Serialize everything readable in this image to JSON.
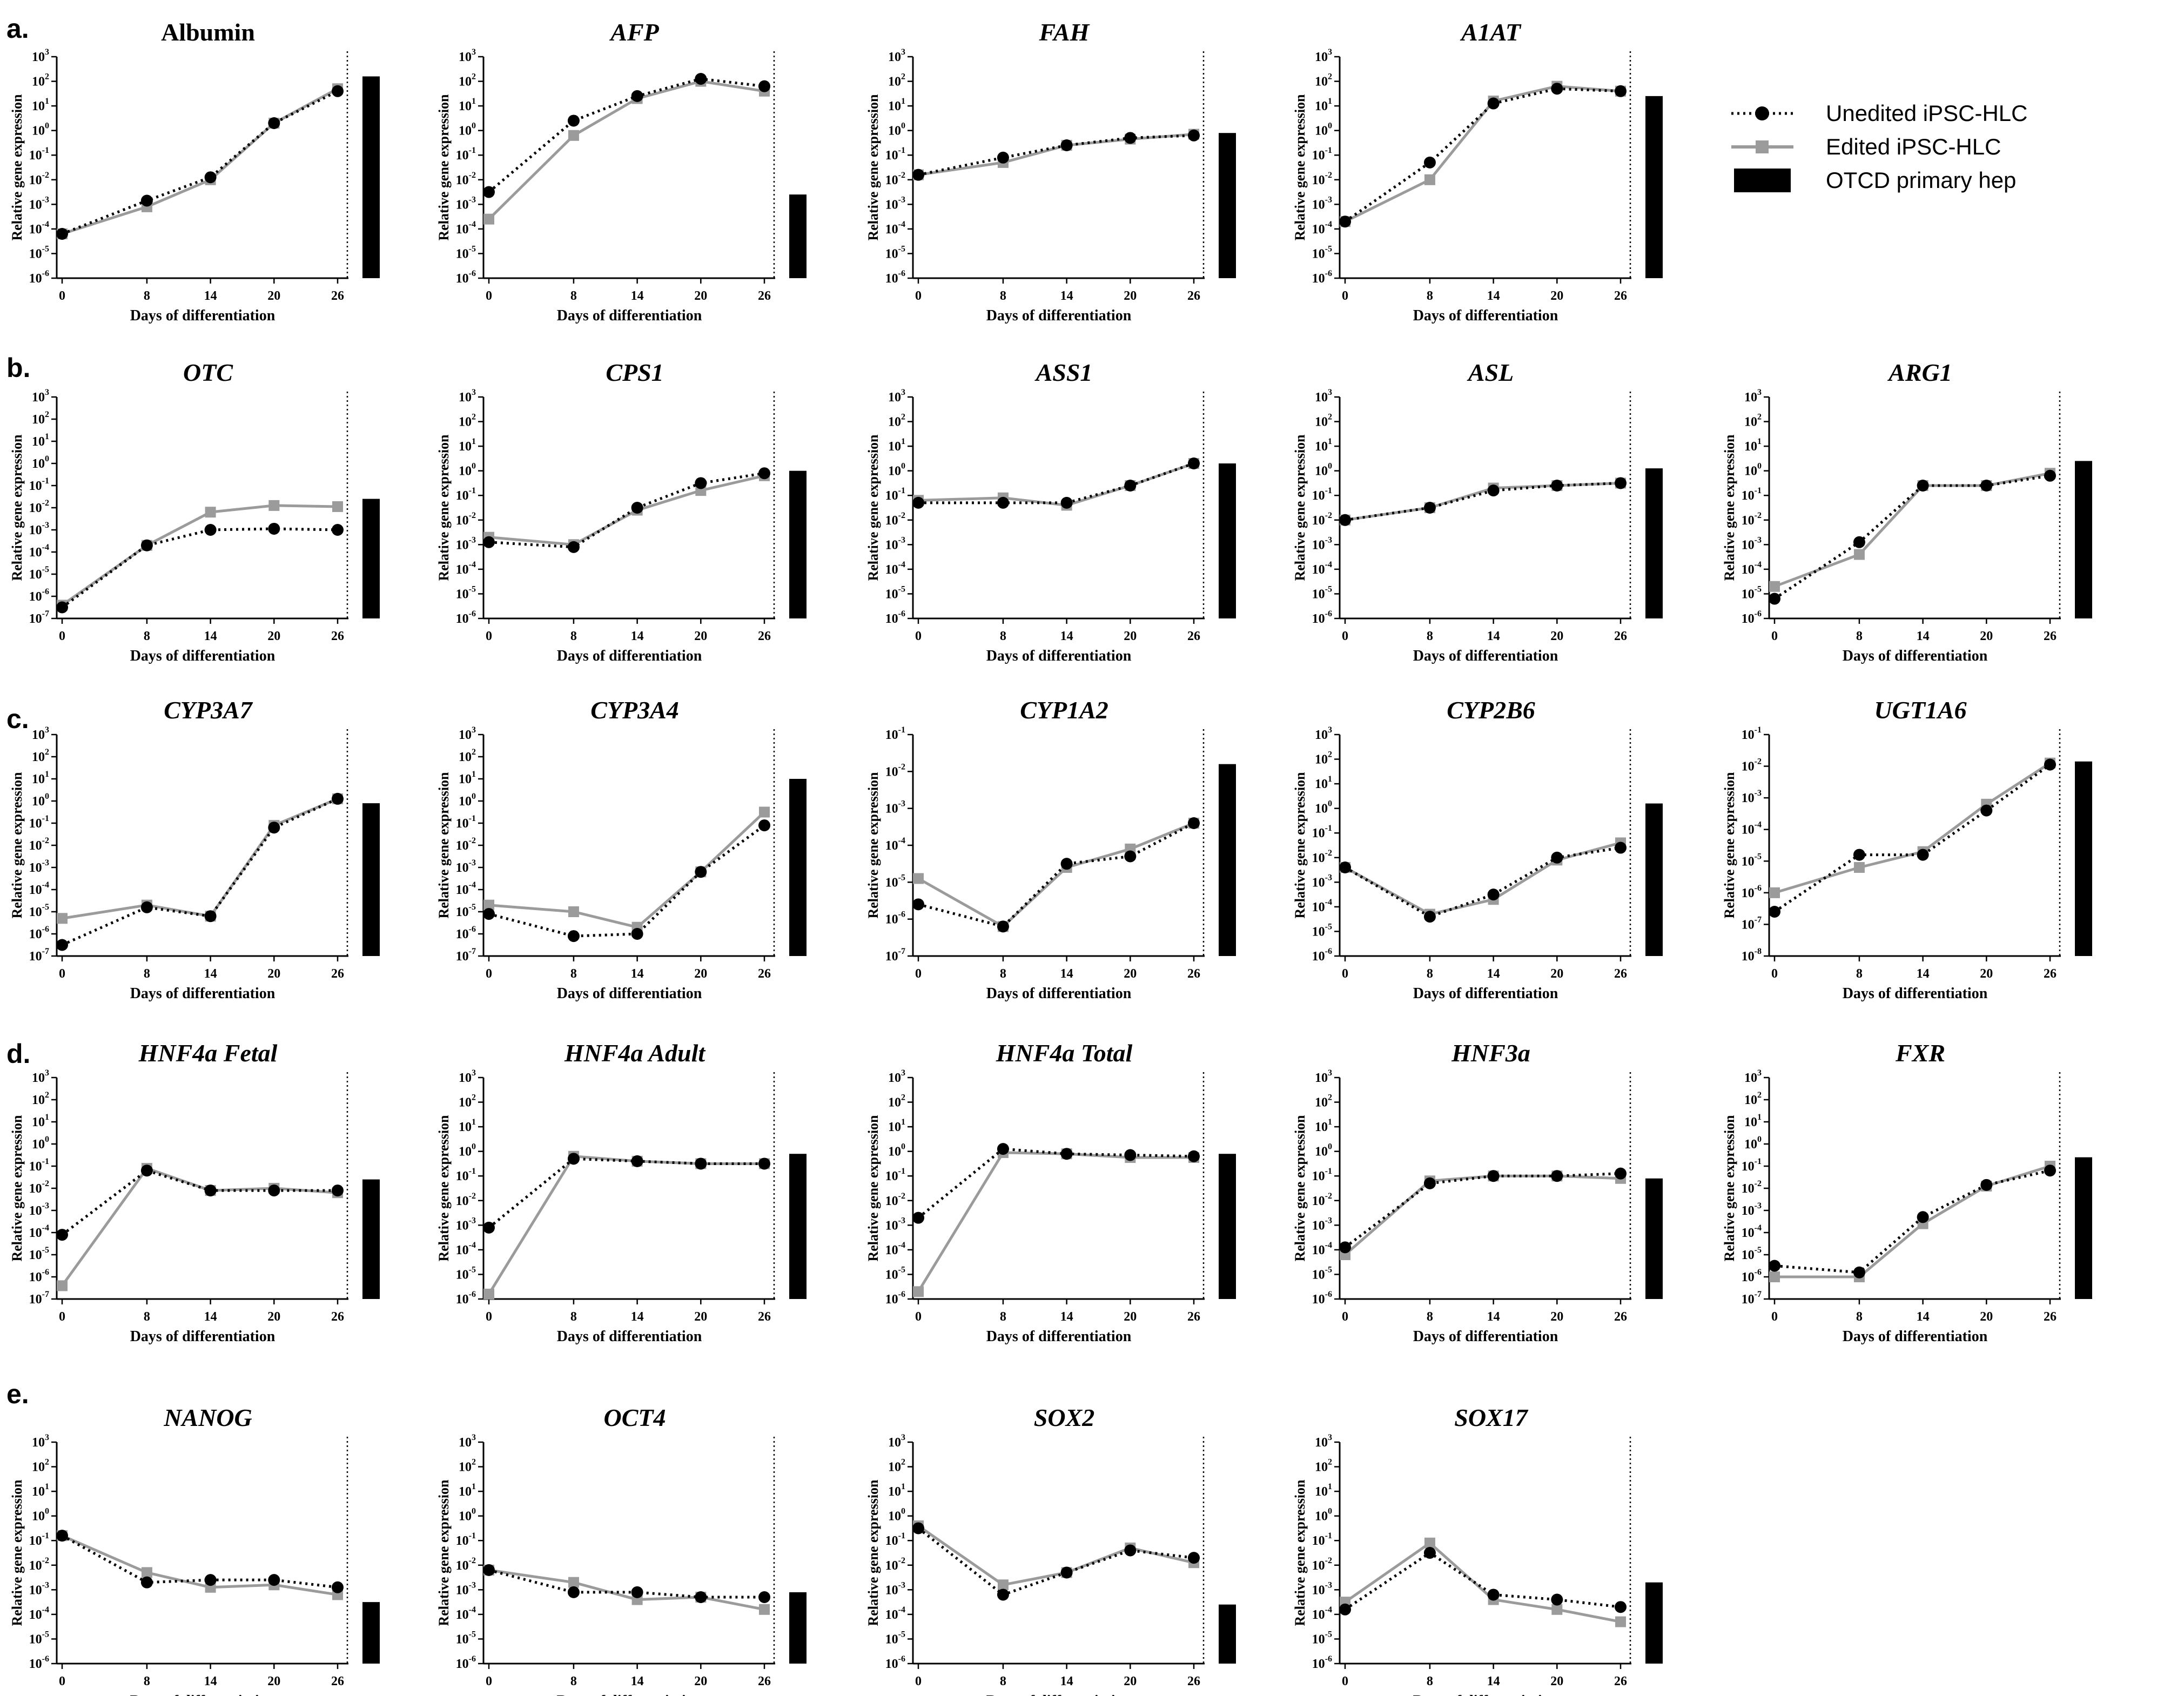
{
  "figure": {
    "xlabel": "Days of differentiation",
    "ylabel": "Relative gene expression",
    "x_ticks": [
      0,
      8,
      14,
      20,
      26
    ],
    "row_labels": [
      "a.",
      "b.",
      "c.",
      "d.",
      "e."
    ]
  },
  "legend": {
    "position": "top-right",
    "entries": [
      {
        "name": "Unedited iPSC-HLC",
        "color": "#000000",
        "style": "dotted-circle"
      },
      {
        "name": "Edited iPSC-HLC",
        "color": "#9b9b9b",
        "style": "solid-square"
      },
      {
        "name": "OTCD primary hep",
        "color": "#000000",
        "style": "bar"
      }
    ]
  },
  "chart_data": [
    {
      "type": "line",
      "row": "a.",
      "title": "Albumin",
      "italic": false,
      "ylim_exp": [
        -6,
        3
      ],
      "xlabel": "Days of differentiation",
      "ylabel": "Relative gene expression",
      "x": [
        0,
        8,
        14,
        20,
        26
      ],
      "series": [
        {
          "name": "Unedited iPSC-HLC",
          "values": [
            -4.2,
            -2.85,
            -1.9,
            0.3,
            1.6
          ]
        },
        {
          "name": "Edited iPSC-HLC",
          "values": [
            -4.2,
            -3.1,
            -2.0,
            0.3,
            1.7
          ]
        }
      ],
      "bar_exp": 2.2
    },
    {
      "type": "line",
      "row": "a.",
      "title": "AFP",
      "italic": true,
      "ylim_exp": [
        -6,
        3
      ],
      "xlabel": "Days of differentiation",
      "ylabel": "Relative gene expression",
      "x": [
        0,
        8,
        14,
        20,
        26
      ],
      "series": [
        {
          "name": "Unedited iPSC-HLC",
          "values": [
            -2.5,
            0.4,
            1.4,
            2.1,
            1.8
          ]
        },
        {
          "name": "Edited iPSC-HLC",
          "values": [
            -3.6,
            -0.2,
            1.3,
            2.0,
            1.6
          ]
        }
      ],
      "bar_exp": -2.6
    },
    {
      "type": "line",
      "row": "a.",
      "title": "FAH",
      "italic": true,
      "ylim_exp": [
        -6,
        3
      ],
      "xlabel": "Days of differentiation",
      "ylabel": "Relative gene expression",
      "x": [
        0,
        8,
        14,
        20,
        26
      ],
      "series": [
        {
          "name": "Unedited iPSC-HLC",
          "values": [
            -1.8,
            -1.1,
            -0.6,
            -0.3,
            -0.2
          ]
        },
        {
          "name": "Edited iPSC-HLC",
          "values": [
            -1.8,
            -1.3,
            -0.6,
            -0.35,
            -0.15
          ]
        }
      ],
      "bar_exp": -0.1
    },
    {
      "type": "line",
      "row": "a.",
      "title": "A1AT",
      "italic": true,
      "ylim_exp": [
        -6,
        3
      ],
      "xlabel": "Days of differentiation",
      "ylabel": "Relative gene expression",
      "x": [
        0,
        8,
        14,
        20,
        26
      ],
      "series": [
        {
          "name": "Unedited iPSC-HLC",
          "values": [
            -3.7,
            -1.3,
            1.1,
            1.7,
            1.6
          ]
        },
        {
          "name": "Edited iPSC-HLC",
          "values": [
            -3.7,
            -2.0,
            1.2,
            1.8,
            1.6
          ]
        }
      ],
      "bar_exp": 1.4
    },
    {
      "type": "line",
      "row": "b.",
      "title": "OTC",
      "italic": true,
      "ylim_exp": [
        -7,
        3
      ],
      "xlabel": "Days of differentiation",
      "ylabel": "Relative gene expression",
      "x": [
        0,
        8,
        14,
        20,
        26
      ],
      "series": [
        {
          "name": "Unedited iPSC-HLC",
          "values": [
            -6.5,
            -3.7,
            -3.0,
            -2.95,
            -3.0
          ]
        },
        {
          "name": "Edited iPSC-HLC",
          "values": [
            -6.4,
            -3.7,
            -2.2,
            -1.9,
            -1.95
          ]
        }
      ],
      "bar_exp": -1.6
    },
    {
      "type": "line",
      "row": "b.",
      "title": "CPS1",
      "italic": true,
      "ylim_exp": [
        -6,
        3
      ],
      "xlabel": "Days of differentiation",
      "ylabel": "Relative gene expression",
      "x": [
        0,
        8,
        14,
        20,
        26
      ],
      "series": [
        {
          "name": "Unedited iPSC-HLC",
          "values": [
            -2.9,
            -3.1,
            -1.5,
            -0.5,
            -0.1
          ]
        },
        {
          "name": "Edited iPSC-HLC",
          "values": [
            -2.7,
            -3.0,
            -1.6,
            -0.8,
            -0.2
          ]
        }
      ],
      "bar_exp": 0.0
    },
    {
      "type": "line",
      "row": "b.",
      "title": "ASS1",
      "italic": true,
      "ylim_exp": [
        -6,
        3
      ],
      "xlabel": "Days of differentiation",
      "ylabel": "Relative gene expression",
      "x": [
        0,
        8,
        14,
        20,
        26
      ],
      "series": [
        {
          "name": "Unedited iPSC-HLC",
          "values": [
            -1.3,
            -1.3,
            -1.3,
            -0.6,
            0.3
          ]
        },
        {
          "name": "Edited iPSC-HLC",
          "values": [
            -1.2,
            -1.1,
            -1.4,
            -0.6,
            0.3
          ]
        }
      ],
      "bar_exp": 0.3
    },
    {
      "type": "line",
      "row": "b.",
      "title": "ASL",
      "italic": true,
      "ylim_exp": [
        -6,
        3
      ],
      "xlabel": "Days of differentiation",
      "ylabel": "Relative gene expression",
      "x": [
        0,
        8,
        14,
        20,
        26
      ],
      "series": [
        {
          "name": "Unedited iPSC-HLC",
          "values": [
            -2.0,
            -1.5,
            -0.8,
            -0.6,
            -0.5
          ]
        },
        {
          "name": "Edited iPSC-HLC",
          "values": [
            -2.0,
            -1.5,
            -0.7,
            -0.6,
            -0.5
          ]
        }
      ],
      "bar_exp": 0.1
    },
    {
      "type": "line",
      "row": "b.",
      "title": "ARG1",
      "italic": true,
      "ylim_exp": [
        -6,
        3
      ],
      "xlabel": "Days of differentiation",
      "ylabel": "Relative gene expression",
      "x": [
        0,
        8,
        14,
        20,
        26
      ],
      "series": [
        {
          "name": "Unedited iPSC-HLC",
          "values": [
            -5.2,
            -2.9,
            -0.6,
            -0.6,
            -0.2
          ]
        },
        {
          "name": "Edited iPSC-HLC",
          "values": [
            -4.7,
            -3.4,
            -0.6,
            -0.6,
            -0.1
          ]
        }
      ],
      "bar_exp": 0.4
    },
    {
      "type": "line",
      "row": "c.",
      "title": "CYP3A7",
      "italic": true,
      "ylim_exp": [
        -7,
        3
      ],
      "xlabel": "Days of differentiation",
      "ylabel": "Relative gene expression",
      "x": [
        0,
        8,
        14,
        20,
        26
      ],
      "series": [
        {
          "name": "Unedited iPSC-HLC",
          "values": [
            -6.5,
            -4.8,
            -5.2,
            -1.2,
            0.1
          ]
        },
        {
          "name": "Edited iPSC-HLC",
          "values": [
            -5.3,
            -4.7,
            -5.2,
            -1.1,
            0.1
          ]
        }
      ],
      "bar_exp": -0.1
    },
    {
      "type": "line",
      "row": "c.",
      "title": "CYP3A4",
      "italic": true,
      "ylim_exp": [
        -7,
        3
      ],
      "xlabel": "Days of differentiation",
      "ylabel": "Relative gene expression",
      "x": [
        0,
        8,
        14,
        20,
        26
      ],
      "series": [
        {
          "name": "Unedited iPSC-HLC",
          "values": [
            -5.1,
            -6.1,
            -6.0,
            -3.2,
            -1.1
          ]
        },
        {
          "name": "Edited iPSC-HLC",
          "values": [
            -4.7,
            -5.0,
            -5.7,
            -3.2,
            -0.5
          ]
        }
      ],
      "bar_exp": 1.0
    },
    {
      "type": "line",
      "row": "c.",
      "title": "CYP1A2",
      "italic": true,
      "ylim_exp": [
        -7,
        -1
      ],
      "xlabel": "Days of differentiation",
      "ylabel": "Relative gene expression",
      "x": [
        0,
        8,
        14,
        20,
        26
      ],
      "series": [
        {
          "name": "Unedited iPSC-HLC",
          "values": [
            -5.6,
            -6.2,
            -4.5,
            -4.3,
            -3.4
          ]
        },
        {
          "name": "Edited iPSC-HLC",
          "values": [
            -4.9,
            -6.2,
            -4.6,
            -4.1,
            -3.4
          ]
        }
      ],
      "bar_exp": -1.8
    },
    {
      "type": "line",
      "row": "c.",
      "title": "CYP2B6",
      "italic": true,
      "ylim_exp": [
        -6,
        3
      ],
      "xlabel": "Days of differentiation",
      "ylabel": "Relative gene expression",
      "x": [
        0,
        8,
        14,
        20,
        26
      ],
      "series": [
        {
          "name": "Unedited iPSC-HLC",
          "values": [
            -2.4,
            -4.4,
            -3.5,
            -2.0,
            -1.6
          ]
        },
        {
          "name": "Edited iPSC-HLC",
          "values": [
            -2.4,
            -4.3,
            -3.7,
            -2.1,
            -1.4
          ]
        }
      ],
      "bar_exp": 0.2
    },
    {
      "type": "line",
      "row": "c.",
      "title": "UGT1A6",
      "italic": true,
      "ylim_exp": [
        -8,
        -1
      ],
      "xlabel": "Days of differentiation",
      "ylabel": "Relative gene expression",
      "x": [
        0,
        8,
        14,
        20,
        26
      ],
      "series": [
        {
          "name": "Unedited iPSC-HLC",
          "values": [
            -6.6,
            -4.8,
            -4.8,
            -3.4,
            -1.95
          ]
        },
        {
          "name": "Edited iPSC-HLC",
          "values": [
            -6.0,
            -5.2,
            -4.7,
            -3.2,
            -1.9
          ]
        }
      ],
      "bar_exp": -1.85
    },
    {
      "type": "line",
      "row": "d.",
      "title": "HNF4a Fetal",
      "italic": true,
      "ylim_exp": [
        -7,
        3
      ],
      "xlabel": "Days of differentiation",
      "ylabel": "Relative gene expression",
      "x": [
        0,
        8,
        14,
        20,
        26
      ],
      "series": [
        {
          "name": "Unedited iPSC-HLC",
          "values": [
            -4.1,
            -1.2,
            -2.1,
            -2.1,
            -2.1
          ]
        },
        {
          "name": "Edited iPSC-HLC",
          "values": [
            -6.4,
            -1.1,
            -2.1,
            -2.0,
            -2.2
          ]
        }
      ],
      "bar_exp": -1.6
    },
    {
      "type": "line",
      "row": "d.",
      "title": "HNF4a Adult",
      "italic": true,
      "ylim_exp": [
        -6,
        3
      ],
      "xlabel": "Days of differentiation",
      "ylabel": "Relative gene expression",
      "x": [
        0,
        8,
        14,
        20,
        26
      ],
      "series": [
        {
          "name": "Unedited iPSC-HLC",
          "values": [
            -3.1,
            -0.3,
            -0.4,
            -0.5,
            -0.5
          ]
        },
        {
          "name": "Edited iPSC-HLC",
          "values": [
            -5.8,
            -0.2,
            -0.4,
            -0.5,
            -0.5
          ]
        }
      ],
      "bar_exp": -0.1
    },
    {
      "type": "line",
      "row": "d.",
      "title": "HNF4a Total",
      "italic": true,
      "ylim_exp": [
        -6,
        3
      ],
      "xlabel": "Days of differentiation",
      "ylabel": "Relative gene expression",
      "x": [
        0,
        8,
        14,
        20,
        26
      ],
      "series": [
        {
          "name": "Unedited iPSC-HLC",
          "values": [
            -2.7,
            0.1,
            -0.1,
            -0.15,
            -0.2
          ]
        },
        {
          "name": "Edited iPSC-HLC",
          "values": [
            -5.7,
            -0.05,
            -0.1,
            -0.25,
            -0.25
          ]
        }
      ],
      "bar_exp": -0.1
    },
    {
      "type": "line",
      "row": "d.",
      "title": "HNF3a",
      "italic": true,
      "ylim_exp": [
        -6,
        3
      ],
      "xlabel": "Days of differentiation",
      "ylabel": "Relative gene expression",
      "x": [
        0,
        8,
        14,
        20,
        26
      ],
      "series": [
        {
          "name": "Unedited iPSC-HLC",
          "values": [
            -3.9,
            -1.3,
            -1.0,
            -1.0,
            -0.9
          ]
        },
        {
          "name": "Edited iPSC-HLC",
          "values": [
            -4.2,
            -1.2,
            -1.0,
            -1.0,
            -1.1
          ]
        }
      ],
      "bar_exp": -1.1
    },
    {
      "type": "line",
      "row": "d.",
      "title": "FXR",
      "italic": true,
      "ylim_exp": [
        -7,
        3
      ],
      "xlabel": "Days of differentiation",
      "ylabel": "Relative gene expression",
      "x": [
        0,
        8,
        14,
        20,
        26
      ],
      "series": [
        {
          "name": "Unedited iPSC-HLC",
          "values": [
            -5.5,
            -5.8,
            -3.3,
            -1.85,
            -1.2
          ]
        },
        {
          "name": "Edited iPSC-HLC",
          "values": [
            -6.0,
            -6.0,
            -3.6,
            -1.9,
            -1.0
          ]
        }
      ],
      "bar_exp": -0.6
    },
    {
      "type": "line",
      "row": "e.",
      "title": "NANOG",
      "italic": true,
      "ylim_exp": [
        -6,
        3
      ],
      "xlabel": "Days of differentiation",
      "ylabel": "Relative gene expression",
      "x": [
        0,
        8,
        14,
        20,
        26
      ],
      "series": [
        {
          "name": "Unedited iPSC-HLC",
          "values": [
            -0.8,
            -2.7,
            -2.6,
            -2.6,
            -2.9
          ]
        },
        {
          "name": "Edited iPSC-HLC",
          "values": [
            -0.8,
            -2.3,
            -2.9,
            -2.8,
            -3.2
          ]
        }
      ],
      "bar_exp": -3.5
    },
    {
      "type": "line",
      "row": "e.",
      "title": "OCT4",
      "italic": true,
      "ylim_exp": [
        -6,
        3
      ],
      "xlabel": "Days of differentiation",
      "ylabel": "Relative gene expression",
      "x": [
        0,
        8,
        14,
        20,
        26
      ],
      "series": [
        {
          "name": "Unedited iPSC-HLC",
          "values": [
            -2.2,
            -3.1,
            -3.1,
            -3.3,
            -3.3
          ]
        },
        {
          "name": "Edited iPSC-HLC",
          "values": [
            -2.2,
            -2.7,
            -3.4,
            -3.3,
            -3.8
          ]
        }
      ],
      "bar_exp": -3.1
    },
    {
      "type": "line",
      "row": "e.",
      "title": "SOX2",
      "italic": true,
      "ylim_exp": [
        -6,
        3
      ],
      "xlabel": "Days of differentiation",
      "ylabel": "Relative gene expression",
      "x": [
        0,
        8,
        14,
        20,
        26
      ],
      "series": [
        {
          "name": "Unedited iPSC-HLC",
          "values": [
            -0.5,
            -3.2,
            -2.3,
            -1.4,
            -1.7
          ]
        },
        {
          "name": "Edited iPSC-HLC",
          "values": [
            -0.4,
            -2.8,
            -2.3,
            -1.3,
            -1.9
          ]
        }
      ],
      "bar_exp": -3.6
    },
    {
      "type": "line",
      "row": "e.",
      "title": "SOX17",
      "italic": true,
      "ylim_exp": [
        -6,
        3
      ],
      "xlabel": "Days of differentiation",
      "ylabel": "Relative gene expression",
      "x": [
        0,
        8,
        14,
        20,
        26
      ],
      "series": [
        {
          "name": "Unedited iPSC-HLC",
          "values": [
            -3.8,
            -1.5,
            -3.2,
            -3.4,
            -3.7
          ]
        },
        {
          "name": "Edited iPSC-HLC",
          "values": [
            -3.5,
            -1.1,
            -3.4,
            -3.8,
            -4.3
          ]
        }
      ],
      "bar_exp": -2.7
    }
  ]
}
